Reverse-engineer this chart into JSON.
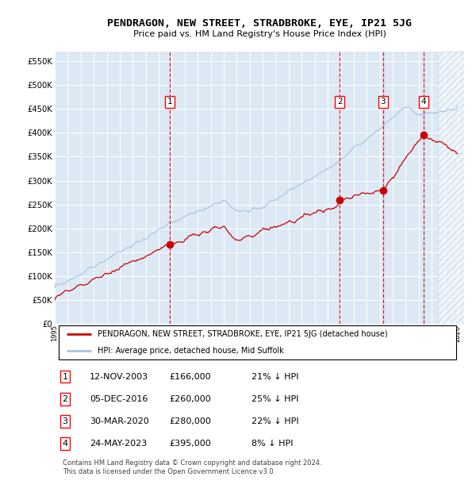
{
  "title": "PENDRAGON, NEW STREET, STRADBROKE, EYE, IP21 5JG",
  "subtitle": "Price paid vs. HM Land Registry's House Price Index (HPI)",
  "x_start_year": 1995,
  "x_end_year": 2026,
  "y_ticks": [
    0,
    50000,
    100000,
    150000,
    200000,
    250000,
    300000,
    350000,
    400000,
    450000,
    500000,
    550000
  ],
  "sales": [
    {
      "label": "1",
      "date": "12-NOV-2003",
      "year": 2003.87,
      "price": 166000,
      "pct": "21%"
    },
    {
      "label": "2",
      "date": "05-DEC-2016",
      "year": 2016.93,
      "price": 260000,
      "pct": "25%"
    },
    {
      "label": "3",
      "date": "30-MAR-2020",
      "year": 2020.25,
      "price": 280000,
      "pct": "22%"
    },
    {
      "label": "4",
      "date": "24-MAY-2023",
      "year": 2023.4,
      "price": 395000,
      "pct": "8%"
    }
  ],
  "legend_line1": "PENDRAGON, NEW STREET, STRADBROKE, EYE, IP21 5JG (detached house)",
  "legend_line2": "HPI: Average price, detached house, Mid Suffolk",
  "hpi_color": "#a8c4e0",
  "property_color": "#cc0000",
  "vline_color": "#cc0000",
  "plot_bg": "#dce9f5",
  "footer": "Contains HM Land Registry data © Crown copyright and database right 2024.\nThis data is licensed under the Open Government Licence v3.0.",
  "table_rows": [
    [
      "1",
      "12-NOV-2003",
      "£166,000",
      "21% ↓ HPI"
    ],
    [
      "2",
      "05-DEC-2016",
      "£260,000",
      "25% ↓ HPI"
    ],
    [
      "3",
      "30-MAR-2020",
      "£280,000",
      "22% ↓ HPI"
    ],
    [
      "4",
      "24-MAY-2023",
      "£395,000",
      "8% ↓ HPI"
    ]
  ]
}
